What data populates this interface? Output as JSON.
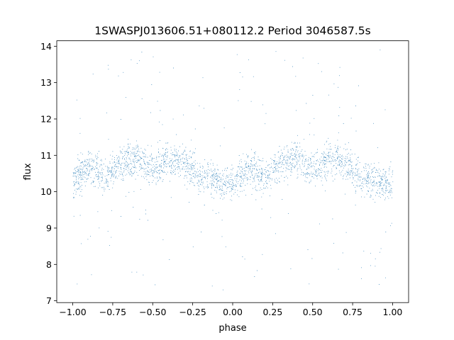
{
  "chart_data": {
    "type": "scatter",
    "title": "1SWASPJ013606.51+080112.2 Period 3046587.5s",
    "xlabel": "phase",
    "ylabel": "flux",
    "xlim": [
      -1.1,
      1.1
    ],
    "ylim": [
      6.95,
      14.15
    ],
    "x_ticks": [
      -1.0,
      -0.75,
      -0.5,
      -0.25,
      0.0,
      0.25,
      0.5,
      0.75,
      1.0
    ],
    "x_tick_labels": [
      "−1.00",
      "−0.75",
      "−0.50",
      "−0.25",
      "0.00",
      "0.25",
      "0.50",
      "0.75",
      "1.00"
    ],
    "y_ticks": [
      7,
      8,
      9,
      10,
      11,
      12,
      13,
      14
    ],
    "y_tick_labels": [
      "7",
      "8",
      "9",
      "10",
      "11",
      "12",
      "13",
      "14"
    ],
    "grid": false,
    "legend": "none",
    "marker_color": "#1f77b4",
    "series": [
      {
        "phase_band_centers": [
          -1.0,
          -0.9,
          -0.8,
          -0.7,
          -0.6,
          -0.5,
          -0.4,
          -0.3,
          -0.2,
          -0.1,
          0.0,
          0.1,
          0.2,
          0.3,
          0.4,
          0.5,
          0.6,
          0.7,
          0.8,
          0.9,
          1.0
        ],
        "median_flux": [
          10.3,
          10.7,
          10.4,
          10.8,
          10.9,
          10.6,
          10.9,
          10.8,
          10.4,
          10.3,
          10.2,
          10.7,
          10.4,
          10.8,
          10.9,
          10.6,
          10.9,
          10.8,
          10.4,
          10.3,
          10.2
        ],
        "flux_min": 7.3,
        "flux_max": 13.9
      }
    ]
  }
}
